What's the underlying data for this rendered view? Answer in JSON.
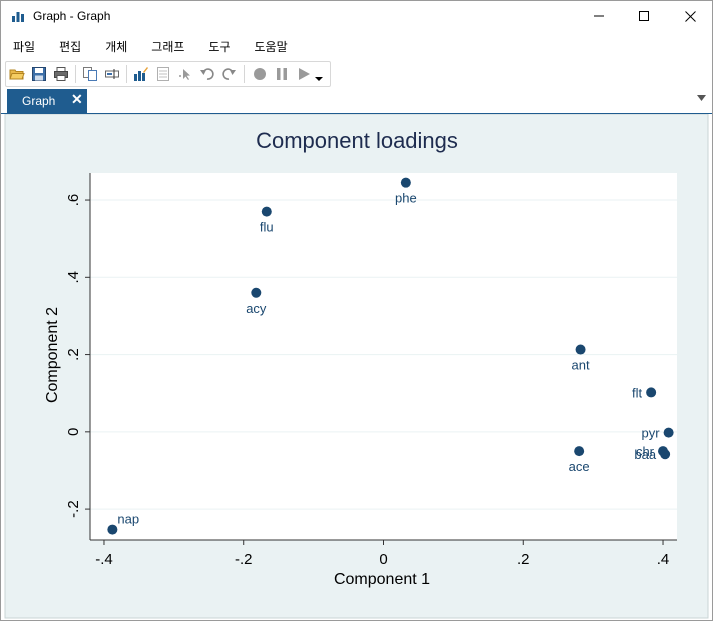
{
  "window": {
    "title": "Graph - Graph",
    "controls": [
      "minimize",
      "maximize",
      "close"
    ]
  },
  "menu": {
    "items": [
      "파일",
      "편집",
      "개체",
      "그래프",
      "도구",
      "도움말"
    ]
  },
  "toolbar": {
    "icons": [
      "open-icon",
      "save-icon",
      "print-icon",
      "copy-icon",
      "rename-icon",
      "graph-editor-icon",
      "data-icon",
      "pointer-icon",
      "undo-icon",
      "redo-icon",
      "record-icon",
      "pause-icon",
      "play-icon",
      "dropdown-icon"
    ]
  },
  "tabs": [
    {
      "label": "Graph",
      "close": "✕"
    }
  ],
  "colors": {
    "accent": "#1f5c8f",
    "marker": "#1a476f",
    "plot_region_bg": "#eaf2f3",
    "title": "#1e2c4f"
  },
  "chart_data": {
    "type": "scatter",
    "title": "Component loadings",
    "xlabel": "Component 1",
    "ylabel": "Component 2",
    "xlim": [
      -0.42,
      0.42
    ],
    "ylim": [
      -0.28,
      0.67
    ],
    "xticks": [
      -0.4,
      -0.2,
      0,
      0.2,
      0.4
    ],
    "xtick_labels": [
      "-.4",
      "-.2",
      "0",
      ".2",
      ".4"
    ],
    "yticks": [
      -0.2,
      0,
      0.2,
      0.4,
      0.6
    ],
    "ytick_labels": [
      "-.2",
      "0",
      ".2",
      ".4",
      ".6"
    ],
    "grid": true,
    "points": [
      {
        "label": "phe",
        "x": 0.032,
        "y": 0.645,
        "pos": "below"
      },
      {
        "label": "flu",
        "x": -0.167,
        "y": 0.57,
        "pos": "below"
      },
      {
        "label": "acy",
        "x": -0.182,
        "y": 0.36,
        "pos": "below"
      },
      {
        "label": "ant",
        "x": 0.282,
        "y": 0.213,
        "pos": "below"
      },
      {
        "label": "flt",
        "x": 0.383,
        "y": 0.102,
        "pos": "left"
      },
      {
        "label": "pyr",
        "x": 0.408,
        "y": -0.002,
        "pos": "left"
      },
      {
        "label": "chr",
        "x": 0.4,
        "y": -0.05,
        "pos": "left"
      },
      {
        "label": "baa",
        "x": 0.403,
        "y": -0.058,
        "pos": "left"
      },
      {
        "label": "ace",
        "x": 0.28,
        "y": -0.05,
        "pos": "below"
      },
      {
        "label": "nap",
        "x": -0.388,
        "y": -0.253,
        "pos": "upright"
      }
    ]
  }
}
